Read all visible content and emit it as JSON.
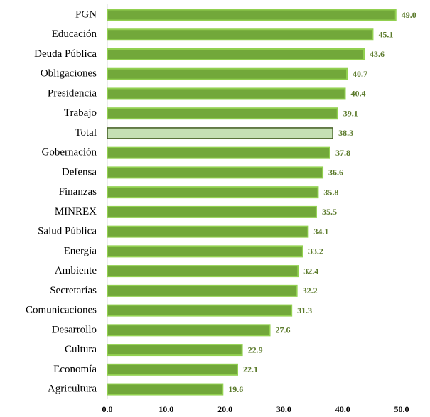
{
  "chart_data": {
    "type": "bar",
    "orientation": "horizontal",
    "categories": [
      "PGN",
      "Educación",
      "Deuda Pública",
      "Obligaciones",
      "Presidencia",
      "Trabajo",
      "Total",
      "Gobernación",
      "Defensa",
      "Finanzas",
      "MINREX",
      "Salud Pública",
      "Energía",
      "Ambiente",
      "Secretarías",
      "Comunicaciones",
      "Desarrollo",
      "Cultura",
      "Economía",
      "Agricultura"
    ],
    "values": [
      49.0,
      45.1,
      43.6,
      40.7,
      40.4,
      39.1,
      38.3,
      37.8,
      36.6,
      35.8,
      35.5,
      34.1,
      33.2,
      32.4,
      32.2,
      31.3,
      27.6,
      22.9,
      22.1,
      19.6
    ],
    "value_labels": [
      "49.0",
      "45.1",
      "43.6",
      "40.7",
      "40.4",
      "39.1",
      "38.3",
      "37.8",
      "36.6",
      "35.8",
      "35.5",
      "34.1",
      "33.2",
      "32.4",
      "32.2",
      "31.3",
      "27.6",
      "22.9",
      "22.1",
      "19.6"
    ],
    "colors": [
      "#72a83a",
      "#72a83a",
      "#72a83a",
      "#72a83a",
      "#72a83a",
      "#72a83a",
      "#c5e0b4",
      "#72a83a",
      "#72a83a",
      "#72a83a",
      "#72a83a",
      "#72a83a",
      "#72a83a",
      "#72a83a",
      "#72a83a",
      "#72a83a",
      "#72a83a",
      "#72a83a",
      "#72a83a",
      "#72a83a"
    ],
    "xlim": [
      0,
      50
    ],
    "xticks": [
      {
        "value": 0,
        "label": "0.0"
      },
      {
        "value": 10,
        "label": "10.0"
      },
      {
        "value": 20,
        "label": "20.0"
      },
      {
        "value": 30,
        "label": "30.0"
      },
      {
        "value": 40,
        "label": "40.0"
      },
      {
        "value": 50,
        "label": "50.0"
      }
    ],
    "grid": false
  }
}
